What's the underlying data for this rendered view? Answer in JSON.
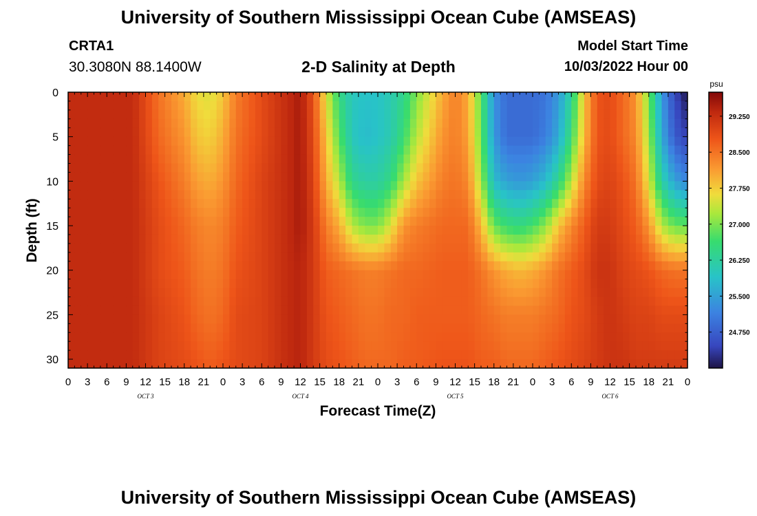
{
  "header": {
    "title": "University of Southern Mississippi Ocean Cube (AMSEAS)",
    "station_name": "CRTA1",
    "station_coords": "30.3080N  88.1400W",
    "model_start_label": "Model Start Time",
    "model_start_value": "10/03/2022 Hour 00"
  },
  "footer": {
    "title": "University of Southern Mississippi Ocean Cube (AMSEAS)"
  },
  "chart_data": {
    "type": "heatmap",
    "title": "2-D Salinity at Depth",
    "xlabel": "Forecast Time(Z)",
    "ylabel": "Depth (ft)",
    "x_range_hours": [
      0,
      96
    ],
    "x_tick_step_hours": 3,
    "x_tick_labels": [
      "0",
      "3",
      "6",
      "9",
      "12",
      "15",
      "18",
      "21",
      "0",
      "3",
      "6",
      "9",
      "12",
      "15",
      "18",
      "21",
      "0",
      "3",
      "6",
      "9",
      "12",
      "15",
      "18",
      "21",
      "0",
      "3",
      "6",
      "9",
      "12",
      "15",
      "18",
      "21",
      "0"
    ],
    "day_labels": [
      {
        "label": "OCT  3",
        "hour": 12
      },
      {
        "label": "OCT  4",
        "hour": 36
      },
      {
        "label": "OCT  5",
        "hour": 60
      },
      {
        "label": "OCT  6",
        "hour": 84
      }
    ],
    "y_range_ft": [
      0,
      31
    ],
    "y_tick_values": [
      0,
      5,
      10,
      15,
      20,
      25,
      30
    ],
    "y_tick_labels": [
      "0",
      "5",
      "10",
      "15",
      "20",
      "25",
      "30"
    ],
    "colorbar": {
      "unit": "psu",
      "range": [
        24.0,
        29.75
      ],
      "tick_values": [
        24.75,
        25.5,
        26.25,
        27.0,
        27.75,
        28.5,
        29.25
      ],
      "tick_labels": [
        "24.750",
        "25.500",
        "26.250",
        "27.000",
        "27.750",
        "28.500",
        "29.250"
      ]
    },
    "sample_hours": [
      0,
      6,
      10,
      14,
      18,
      20,
      22,
      24,
      26,
      30,
      34,
      36,
      38,
      40,
      42,
      44,
      46,
      48,
      50,
      52,
      54,
      58,
      60,
      62,
      64,
      66,
      68,
      70,
      72,
      74,
      76,
      78,
      80,
      82,
      84,
      86,
      88,
      90,
      92,
      94,
      96
    ],
    "sample_depths_ft": [
      0,
      5,
      10,
      15,
      20,
      25,
      31
    ],
    "salinity_psu_profiles": [
      [
        29.3,
        29.3,
        29.3,
        29.3,
        29.3,
        29.3,
        29.3
      ],
      [
        29.3,
        29.3,
        29.3,
        29.3,
        29.3,
        29.3,
        29.3
      ],
      [
        29.3,
        29.3,
        29.3,
        29.3,
        29.3,
        29.3,
        29.3
      ],
      [
        28.5,
        28.6,
        28.8,
        28.9,
        28.9,
        29.0,
        29.0
      ],
      [
        28.0,
        28.2,
        28.4,
        28.6,
        28.7,
        28.8,
        28.9
      ],
      [
        27.6,
        27.8,
        28.1,
        28.4,
        28.5,
        28.6,
        28.8
      ],
      [
        27.5,
        27.7,
        28.0,
        28.3,
        28.4,
        28.5,
        28.7
      ],
      [
        27.8,
        28.0,
        28.2,
        28.4,
        28.5,
        28.6,
        28.8
      ],
      [
        28.4,
        28.5,
        28.6,
        28.7,
        28.8,
        28.9,
        28.9
      ],
      [
        28.9,
        28.9,
        29.0,
        29.0,
        29.0,
        29.0,
        29.0
      ],
      [
        29.3,
        29.3,
        29.3,
        29.3,
        29.3,
        29.3,
        29.3
      ],
      [
        29.5,
        29.5,
        29.5,
        29.5,
        29.4,
        29.4,
        29.4
      ],
      [
        28.8,
        28.9,
        29.0,
        29.1,
        29.1,
        29.1,
        29.1
      ],
      [
        27.5,
        27.8,
        28.0,
        28.4,
        28.7,
        28.8,
        28.9
      ],
      [
        26.5,
        26.8,
        27.3,
        28.0,
        28.6,
        28.7,
        28.8
      ],
      [
        26.0,
        26.0,
        26.4,
        27.3,
        28.5,
        28.6,
        28.7
      ],
      [
        25.9,
        25.8,
        26.2,
        27.0,
        28.4,
        28.5,
        28.6
      ],
      [
        25.9,
        25.9,
        26.2,
        27.0,
        28.4,
        28.5,
        28.6
      ],
      [
        26.1,
        26.1,
        26.5,
        27.5,
        28.5,
        28.6,
        28.6
      ],
      [
        26.4,
        26.6,
        27.2,
        28.2,
        28.6,
        28.6,
        28.7
      ],
      [
        27.0,
        27.3,
        27.8,
        28.4,
        28.6,
        28.7,
        28.7
      ],
      [
        28.0,
        28.2,
        28.4,
        28.6,
        28.7,
        28.7,
        28.8
      ],
      [
        28.4,
        28.4,
        28.5,
        28.6,
        28.7,
        28.7,
        28.8
      ],
      [
        28.0,
        28.1,
        28.3,
        28.6,
        28.7,
        28.7,
        28.8
      ],
      [
        26.8,
        26.9,
        27.2,
        27.9,
        28.5,
        28.6,
        28.7
      ],
      [
        25.3,
        25.4,
        25.8,
        26.9,
        28.2,
        28.5,
        28.7
      ],
      [
        24.9,
        24.9,
        25.5,
        26.6,
        28.0,
        28.4,
        28.6
      ],
      [
        24.9,
        24.9,
        25.4,
        26.5,
        27.9,
        28.4,
        28.6
      ],
      [
        24.9,
        24.9,
        25.5,
        26.7,
        28.0,
        28.4,
        28.6
      ],
      [
        25.0,
        25.1,
        25.8,
        27.1,
        28.2,
        28.5,
        28.7
      ],
      [
        25.4,
        25.6,
        26.4,
        27.8,
        28.5,
        28.6,
        28.8
      ],
      [
        26.3,
        26.6,
        27.3,
        28.3,
        28.7,
        28.8,
        28.9
      ],
      [
        27.8,
        27.9,
        28.3,
        28.7,
        28.9,
        28.9,
        29.0
      ],
      [
        28.8,
        28.8,
        28.9,
        29.1,
        29.2,
        29.1,
        29.1
      ],
      [
        28.9,
        28.9,
        29.0,
        29.1,
        29.2,
        29.2,
        29.2
      ],
      [
        28.6,
        28.6,
        28.8,
        28.9,
        29.0,
        29.1,
        29.2
      ],
      [
        28.2,
        28.3,
        28.5,
        28.7,
        28.9,
        29.0,
        29.1
      ],
      [
        27.0,
        27.2,
        27.5,
        28.2,
        28.8,
        29.0,
        29.1
      ],
      [
        25.4,
        25.6,
        26.2,
        27.3,
        28.6,
        28.9,
        29.1
      ],
      [
        24.5,
        24.7,
        25.5,
        26.9,
        28.5,
        28.9,
        29.1
      ],
      [
        24.0,
        24.4,
        25.2,
        26.9,
        28.5,
        28.9,
        29.1
      ]
    ]
  }
}
